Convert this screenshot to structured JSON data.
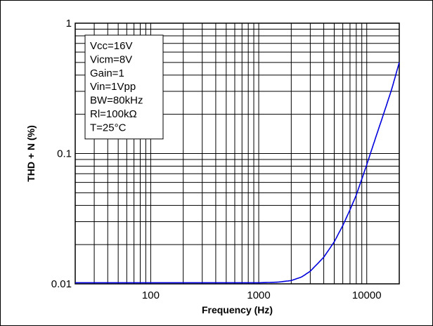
{
  "chart_data": {
    "type": "line",
    "title": "",
    "xlabel": "Frequency (Hz)",
    "ylabel": "THD + N (%)",
    "x_scale": "log",
    "y_scale": "log",
    "xlim": [
      20,
      20000
    ],
    "ylim": [
      0.01,
      1
    ],
    "grid": true,
    "x_tick_labels": [
      {
        "value": 100,
        "label": "100"
      },
      {
        "value": 1000,
        "label": "1000"
      },
      {
        "value": 10000,
        "label": "10000"
      }
    ],
    "y_tick_labels": [
      {
        "value": 0.01,
        "label": "0.01"
      },
      {
        "value": 0.1,
        "label": "0.1"
      },
      {
        "value": 1,
        "label": "1"
      }
    ],
    "legend_placement": "top-left",
    "conditions": [
      "Vcc=16V",
      "Vicm=8V",
      "Gain=1",
      "Vin=1Vpp",
      "BW=80kHz",
      "Rl=100kΩ",
      "T=25°C"
    ],
    "series": [
      {
        "color": "#0000dd",
        "x": [
          20,
          50,
          100,
          200,
          500,
          1000,
          1500,
          2000,
          2500,
          3000,
          4000,
          5000,
          6000,
          7000,
          8000,
          10000,
          12000,
          14000,
          17000,
          20000
        ],
        "y": [
          0.0102,
          0.0102,
          0.0102,
          0.0102,
          0.0102,
          0.0102,
          0.0103,
          0.0106,
          0.0113,
          0.0125,
          0.016,
          0.021,
          0.028,
          0.037,
          0.048,
          0.082,
          0.13,
          0.19,
          0.31,
          0.5
        ]
      }
    ]
  }
}
